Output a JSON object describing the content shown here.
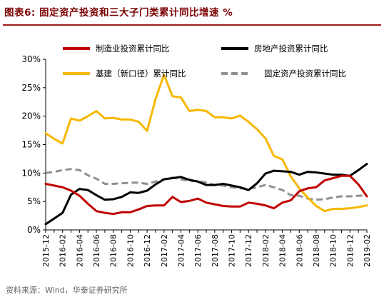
{
  "header": {
    "title": "图表6:  固定资产投资和三大子门类累计同比增速 %"
  },
  "footer": {
    "source": "资料来源：Wind，华泰证券研究所"
  },
  "chart_data": {
    "type": "line",
    "title": "图表6:  固定资产投资和三大子门类累计同比增速 %",
    "xlabel": "",
    "ylabel": "",
    "ylim": [
      0,
      30
    ],
    "y_ticks": [
      "0%",
      "5%",
      "10%",
      "15%",
      "20%",
      "25%",
      "30%"
    ],
    "x_ticks": [
      "2015-12",
      "2016-02",
      "2016-04",
      "2016-06",
      "2016-08",
      "2016-10",
      "2016-12",
      "2017-02",
      "2017-04",
      "2017-06",
      "2017-08",
      "2017-10",
      "2017-12",
      "2018-02",
      "2018-04",
      "2018-06",
      "2018-08",
      "2018-10",
      "2018-12",
      "2019-02"
    ],
    "x": [
      "2015-12",
      "2016-01",
      "2016-02",
      "2016-03",
      "2016-04",
      "2016-05",
      "2016-06",
      "2016-07",
      "2016-08",
      "2016-09",
      "2016-10",
      "2016-11",
      "2016-12",
      "2017-01",
      "2017-02",
      "2017-03",
      "2017-04",
      "2017-05",
      "2017-06",
      "2017-07",
      "2017-08",
      "2017-09",
      "2017-10",
      "2017-11",
      "2017-12",
      "2018-01",
      "2018-02",
      "2018-03",
      "2018-04",
      "2018-05",
      "2018-06",
      "2018-07",
      "2018-08",
      "2018-09",
      "2018-10",
      "2018-11",
      "2018-12",
      "2019-01",
      "2019-02"
    ],
    "legend_placement": "top",
    "grid": false,
    "series": [
      {
        "name": "制造业投资累计同比",
        "color": "#c00000",
        "dash": false,
        "values": [
          8.1,
          7.8,
          7.5,
          6.9,
          6.0,
          4.6,
          3.3,
          3.0,
          2.8,
          3.1,
          3.1,
          3.6,
          4.2,
          4.3,
          4.3,
          5.8,
          4.9,
          5.1,
          5.5,
          4.8,
          4.5,
          4.2,
          4.1,
          4.1,
          4.8,
          4.6,
          4.3,
          3.8,
          4.8,
          5.2,
          6.8,
          7.3,
          7.5,
          8.7,
          9.1,
          9.5,
          9.5,
          8.0,
          5.9
        ]
      },
      {
        "name": "房地产投资累计同比",
        "color": "#000000",
        "dash": false,
        "values": [
          1.0,
          2.0,
          3.0,
          6.2,
          7.2,
          7.0,
          6.1,
          5.3,
          5.4,
          5.8,
          6.6,
          6.5,
          6.9,
          8.0,
          8.9,
          9.1,
          9.3,
          8.8,
          8.5,
          7.9,
          7.9,
          8.1,
          7.8,
          7.5,
          7.0,
          8.2,
          9.9,
          10.4,
          10.3,
          10.2,
          9.7,
          10.2,
          10.1,
          9.9,
          9.7,
          9.7,
          9.5,
          10.5,
          11.6
        ]
      },
      {
        "name": "基建（新口径）累计同比",
        "color": "#f5b800",
        "dash": false,
        "values": [
          17.0,
          16.0,
          15.2,
          19.6,
          19.2,
          20.0,
          20.9,
          19.6,
          19.7,
          19.4,
          19.4,
          19.0,
          17.4,
          23.0,
          27.3,
          23.5,
          23.3,
          20.9,
          21.1,
          20.9,
          19.8,
          19.8,
          19.6,
          20.1,
          19.0,
          17.7,
          16.1,
          13.0,
          12.4,
          9.4,
          7.3,
          5.7,
          4.2,
          3.3,
          3.7,
          3.7,
          3.8,
          4.0,
          4.3
        ]
      },
      {
        "name": "固定资产投资累计同比",
        "color": "#909090",
        "dash": true,
        "values": [
          10.0,
          10.2,
          10.5,
          10.7,
          10.5,
          9.6,
          9.0,
          8.1,
          8.1,
          8.2,
          8.3,
          8.3,
          8.1,
          8.5,
          8.9,
          9.2,
          8.9,
          8.6,
          8.6,
          8.3,
          7.9,
          7.8,
          7.5,
          7.3,
          7.2,
          7.5,
          7.9,
          7.5,
          7.0,
          6.1,
          6.0,
          5.5,
          5.3,
          5.4,
          5.7,
          5.9,
          5.9,
          6.0,
          6.1
        ]
      }
    ]
  }
}
